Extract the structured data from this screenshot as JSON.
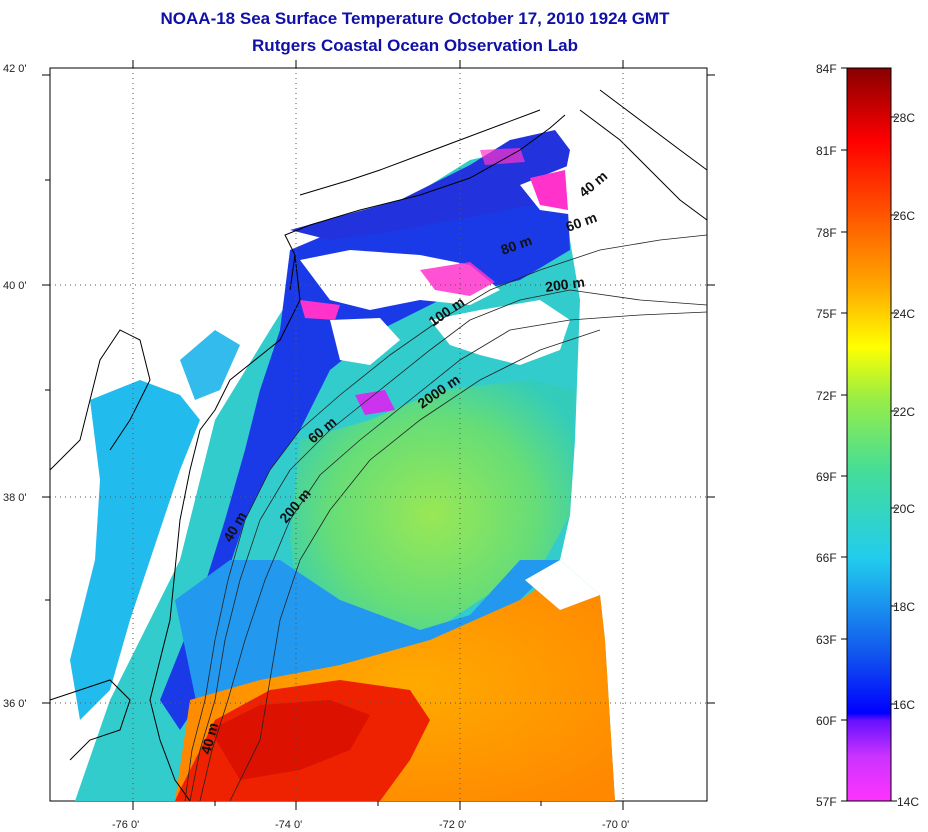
{
  "title": {
    "line1": "NOAA-18 Sea Surface Temperature October 17, 2010 1924 GMT",
    "line2": "Rutgers Coastal Ocean Observation Lab"
  },
  "map": {
    "lat_labels": [
      "42 0'",
      "40 0'",
      "38 0'",
      "36 0'"
    ],
    "lon_labels": [
      "-76 0'",
      "-74 0'",
      "-72 0'",
      "-70 0'"
    ],
    "contour_labels": [
      "40 m",
      "60 m",
      "80 m",
      "200 m",
      "100 m",
      "2000 m",
      "60 m",
      "40 m",
      "200 m",
      "40 m"
    ]
  },
  "colorbar": {
    "f_labels": [
      "84F",
      "81F",
      "78F",
      "75F",
      "72F",
      "69F",
      "66F",
      "63F",
      "60F",
      "57F"
    ],
    "c_labels": [
      "28C",
      "26C",
      "24C",
      "22C",
      "20C",
      "18C",
      "16C",
      "14C"
    ]
  },
  "colors": {
    "title": "#1010a8",
    "cold_pink": "#ff33cc",
    "blue": "#1a1aff",
    "cyan": "#22ccee",
    "green": "#66dd66",
    "orange": "#ff8800",
    "red": "#ee1100",
    "darkred": "#8b0000"
  }
}
